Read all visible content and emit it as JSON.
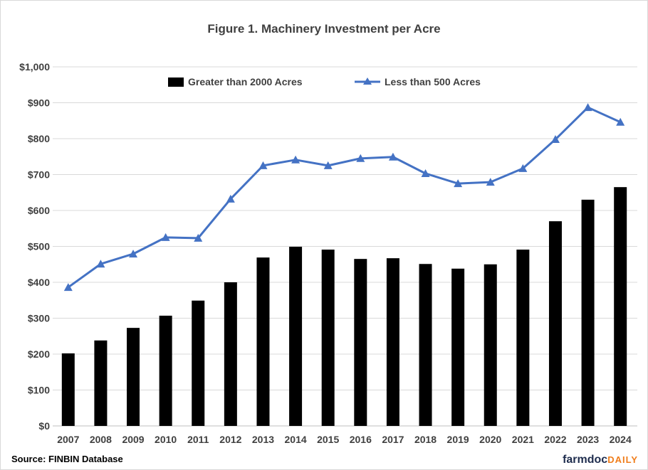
{
  "chart_data": {
    "type": "bar+line",
    "title": "Figure 1.  Machinery Investment per Acre",
    "categories": [
      "2007",
      "2008",
      "2009",
      "2010",
      "2011",
      "2012",
      "2013",
      "2014",
      "2015",
      "2016",
      "2017",
      "2018",
      "2019",
      "2020",
      "2021",
      "2022",
      "2023",
      "2024"
    ],
    "series": [
      {
        "name": "Greater than 2000 Acres",
        "type": "bar",
        "color": "#000000",
        "values": [
          202,
          238,
          273,
          307,
          349,
          400,
          469,
          499,
          491,
          465,
          467,
          451,
          438,
          450,
          491,
          570,
          630,
          665
        ]
      },
      {
        "name": "Less than 500 Acres",
        "type": "line",
        "marker": "triangle",
        "color": "#4472c4",
        "values": [
          386,
          451,
          479,
          525,
          523,
          632,
          725,
          741,
          725,
          745,
          749,
          703,
          675,
          679,
          717,
          798,
          887,
          846
        ]
      }
    ],
    "ylim": [
      0,
      1000
    ],
    "yticks": [
      0,
      100,
      200,
      300,
      400,
      500,
      600,
      700,
      800,
      900,
      1000
    ],
    "ytick_labels": [
      "$0",
      "$100",
      "$200",
      "$300",
      "$400",
      "$500",
      "$600",
      "$700",
      "$800",
      "$900",
      "$1,000"
    ],
    "xlabel": "",
    "ylabel": "",
    "grid": true,
    "legend": "top"
  },
  "source": "Source: FINBIN Database",
  "logo": {
    "part1": "farmdoc",
    "part2": "DAILY"
  }
}
